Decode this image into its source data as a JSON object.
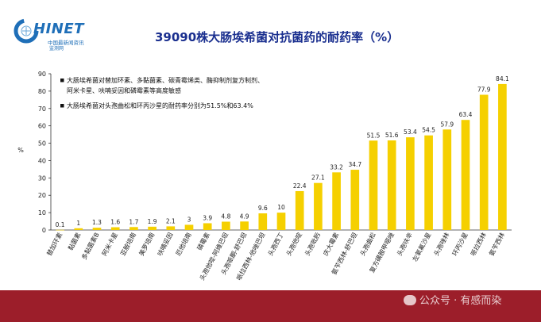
{
  "logo": {
    "word": "HINET",
    "sub": "中国最新闻资讯",
    "sub2": "监测网"
  },
  "chart_data": {
    "type": "bar",
    "title": "39090株大肠埃希菌对抗菌药的耐药率（%）",
    "ylabel": "%",
    "ylim": [
      0,
      90
    ],
    "yticks": [
      0,
      10,
      20,
      30,
      40,
      50,
      60,
      70,
      80,
      90
    ],
    "grid": false,
    "bar_color": "#f5d000",
    "notes": [
      "大肠埃希菌对替加环素、多黏菌素、碳青霉烯类、酶抑制剂复方制剂、",
      "阿米卡星、呋喃妥因和磷霉素等高度敏感",
      "大肠埃希菌对头孢曲松和环丙沙星的耐药率分别为51.5%和63.4%"
    ],
    "categories": [
      "替加环素",
      "黏菌素",
      "多黏菌素B",
      "阿米卡星",
      "亚胺培南",
      "美罗培南",
      "呋喃妥因",
      "厄他培南",
      "磷霉素",
      "头孢他啶-阿维巴坦",
      "头孢哌酮-舒巴坦",
      "哌拉西林-他唑巴坦",
      "头孢西丁",
      "头孢他啶",
      "头孢吡肟",
      "庆大霉素",
      "氨苄西林-舒巴坦",
      "头孢曲松",
      "复方磺胺甲噁唑",
      "头孢呋辛",
      "左氧氟沙星",
      "头孢唑林",
      "环丙沙星",
      "哌拉西林",
      "氨苄西林"
    ],
    "values": [
      0.1,
      1,
      1.3,
      1.6,
      1.7,
      1.9,
      2.1,
      3,
      3.9,
      4.8,
      4.9,
      9.6,
      10,
      22.4,
      27.1,
      33.2,
      34.7,
      51.5,
      51.6,
      53.4,
      54.5,
      57.9,
      63.4,
      77.9,
      84.1
    ],
    "value_labels": [
      "0.1",
      "1",
      "1.3",
      "1.6",
      "1.7",
      "1.9",
      "2.1",
      "3",
      "3.9",
      "4.8",
      "4.9",
      "9.6",
      "10",
      "22.4",
      "27.1",
      "33.2",
      "34.7",
      "51.5",
      "51.6",
      "53.4",
      "54.5",
      "57.9",
      "63.4",
      "77.9",
      "84.1"
    ]
  },
  "watermark": "公众号 · 有感而染",
  "colors": {
    "bar": "#f5d000",
    "title": "#1a2f8f",
    "footer": "#9c1e2a",
    "brand": "#1f6fb8"
  }
}
